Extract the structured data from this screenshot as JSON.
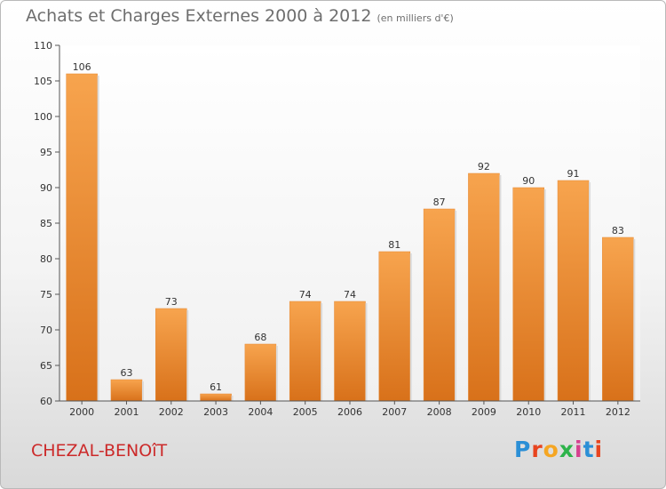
{
  "chart_data": {
    "type": "bar",
    "title": "Achats et Charges Externes 2000 à 2012",
    "subtitle": "(en milliers d'€)",
    "categories": [
      "2000",
      "2001",
      "2002",
      "2003",
      "2004",
      "2005",
      "2006",
      "2007",
      "2008",
      "2009",
      "2010",
      "2011",
      "2012"
    ],
    "values": [
      106,
      63,
      73,
      61,
      68,
      74,
      74,
      81,
      87,
      92,
      90,
      91,
      83
    ],
    "ylim": [
      60,
      110
    ],
    "yticks": [
      60,
      65,
      70,
      75,
      80,
      85,
      90,
      95,
      100,
      105,
      110
    ],
    "grid": false,
    "bar_color": "#f0913a"
  },
  "footer": {
    "commune": "CHEZAL-BENOîT",
    "logo_letters": [
      "P",
      "r",
      "o",
      "x",
      "i",
      "t",
      "i"
    ],
    "logo_colors": [
      "#2b8fd6",
      "#e8441f",
      "#f5a623",
      "#2db34a",
      "#d6408f",
      "#2b8fd6",
      "#e8441f"
    ]
  }
}
